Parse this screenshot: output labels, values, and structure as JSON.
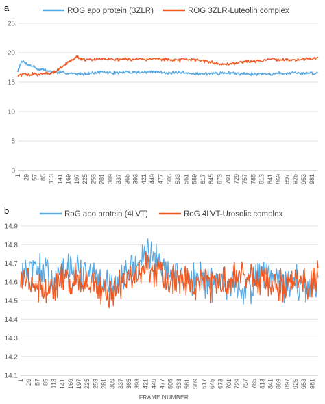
{
  "chart_data": [
    {
      "type": "line",
      "panel_label": "a",
      "xlabel": "",
      "ylabel": "",
      "ylim": [
        0,
        25
      ],
      "yticks": [
        0,
        5,
        10,
        15,
        20,
        25
      ],
      "x_range": [
        1,
        1001
      ],
      "xticks": [
        1,
        29,
        57,
        85,
        113,
        141,
        169,
        197,
        225,
        253,
        281,
        309,
        337,
        365,
        393,
        421,
        449,
        477,
        505,
        533,
        561,
        589,
        617,
        645,
        673,
        701,
        729,
        757,
        785,
        813,
        841,
        869,
        897,
        925,
        953,
        981
      ],
      "grid": true,
      "legend_position": "top",
      "series": [
        {
          "name": "ROG apo protein (3ZLR)",
          "color": "#5aa9e0",
          "x": [
            1,
            10,
            20,
            29,
            40,
            57,
            70,
            85,
            100,
            113,
            130,
            141,
            160,
            169,
            197,
            225,
            253,
            281,
            309,
            337,
            365,
            393,
            421,
            449,
            477,
            505,
            533,
            561,
            589,
            617,
            645,
            673,
            701,
            729,
            757,
            785,
            813,
            841,
            869,
            897,
            925,
            953,
            981,
            1001
          ],
          "values": [
            16.9,
            18.3,
            18.5,
            18.2,
            17.9,
            17.6,
            17.1,
            17.2,
            16.9,
            16.8,
            16.7,
            16.6,
            16.6,
            16.5,
            16.4,
            16.5,
            16.6,
            16.7,
            16.6,
            16.6,
            16.7,
            16.7,
            16.7,
            16.8,
            16.7,
            16.6,
            16.6,
            16.5,
            16.5,
            16.4,
            16.5,
            16.5,
            16.6,
            16.5,
            16.5,
            16.4,
            16.4,
            16.4,
            16.5,
            16.5,
            16.5,
            16.5,
            16.6,
            16.5
          ]
        },
        {
          "name": "ROG 3ZLR-Luteolin complex",
          "color": "#f05a22",
          "x": [
            1,
            10,
            20,
            29,
            40,
            57,
            70,
            85,
            100,
            113,
            130,
            141,
            155,
            169,
            185,
            197,
            210,
            225,
            253,
            281,
            309,
            337,
            365,
            393,
            421,
            449,
            477,
            505,
            533,
            561,
            589,
            617,
            645,
            673,
            701,
            729,
            757,
            785,
            813,
            841,
            869,
            897,
            925,
            953,
            981,
            1001
          ],
          "values": [
            16.1,
            16.2,
            16.4,
            16.2,
            16.3,
            16.5,
            16.3,
            16.4,
            16.6,
            16.5,
            16.9,
            17.3,
            17.9,
            18.4,
            18.9,
            19.5,
            18.9,
            18.8,
            18.9,
            19.0,
            18.9,
            18.8,
            18.9,
            18.9,
            18.8,
            19.0,
            18.9,
            18.8,
            18.7,
            18.8,
            18.8,
            18.6,
            18.4,
            18.1,
            18.0,
            18.3,
            18.5,
            18.6,
            18.7,
            18.9,
            18.8,
            18.8,
            18.8,
            18.9,
            19.0,
            19.1
          ]
        }
      ]
    },
    {
      "type": "line",
      "panel_label": "b",
      "xlabel": "FRAME NUMBER",
      "ylabel": "",
      "ylim": [
        14.1,
        14.9
      ],
      "yticks": [
        14.1,
        14.2,
        14.3,
        14.4,
        14.5,
        14.6,
        14.7,
        14.8,
        14.9
      ],
      "x_range": [
        1,
        1001
      ],
      "xticks": [
        1,
        29,
        57,
        85,
        113,
        141,
        169,
        197,
        225,
        253,
        281,
        309,
        337,
        365,
        393,
        421,
        449,
        477,
        505,
        533,
        561,
        589,
        617,
        645,
        673,
        701,
        729,
        757,
        785,
        813,
        841,
        869,
        897,
        925,
        953,
        981
      ],
      "grid": true,
      "legend_position": "top",
      "series": [
        {
          "name": "RoG apo protein (4LVT)",
          "color": "#5aa9e0",
          "x": [
            1,
            29,
            57,
            85,
            113,
            141,
            169,
            197,
            225,
            253,
            281,
            309,
            337,
            365,
            393,
            421,
            449,
            477,
            505,
            533,
            561,
            589,
            617,
            645,
            673,
            701,
            729,
            757,
            785,
            813,
            841,
            869,
            897,
            925,
            953,
            981,
            1001
          ],
          "values": [
            14.62,
            14.66,
            14.67,
            14.64,
            14.61,
            14.64,
            14.67,
            14.66,
            14.64,
            14.62,
            14.58,
            14.57,
            14.6,
            14.66,
            14.7,
            14.74,
            14.72,
            14.69,
            14.66,
            14.63,
            14.61,
            14.61,
            14.62,
            14.6,
            14.6,
            14.59,
            14.57,
            14.57,
            14.6,
            14.64,
            14.62,
            14.6,
            14.58,
            14.59,
            14.58,
            14.57,
            14.58
          ]
        },
        {
          "name": "RoG 4LVT-Urosolic complex",
          "color": "#f05a22",
          "x": [
            1,
            29,
            57,
            85,
            113,
            141,
            169,
            197,
            225,
            253,
            281,
            309,
            337,
            365,
            393,
            421,
            449,
            477,
            505,
            533,
            561,
            589,
            617,
            645,
            673,
            701,
            729,
            757,
            785,
            813,
            841,
            869,
            897,
            925,
            953,
            981,
            1001
          ],
          "values": [
            14.6,
            14.62,
            14.57,
            14.56,
            14.57,
            14.59,
            14.61,
            14.62,
            14.6,
            14.57,
            14.55,
            14.56,
            14.59,
            14.61,
            14.64,
            14.66,
            14.64,
            14.62,
            14.61,
            14.61,
            14.59,
            14.58,
            14.6,
            14.59,
            14.58,
            14.59,
            14.62,
            14.64,
            14.62,
            14.6,
            14.58,
            14.57,
            14.59,
            14.61,
            14.59,
            14.6,
            14.62
          ]
        }
      ]
    }
  ]
}
